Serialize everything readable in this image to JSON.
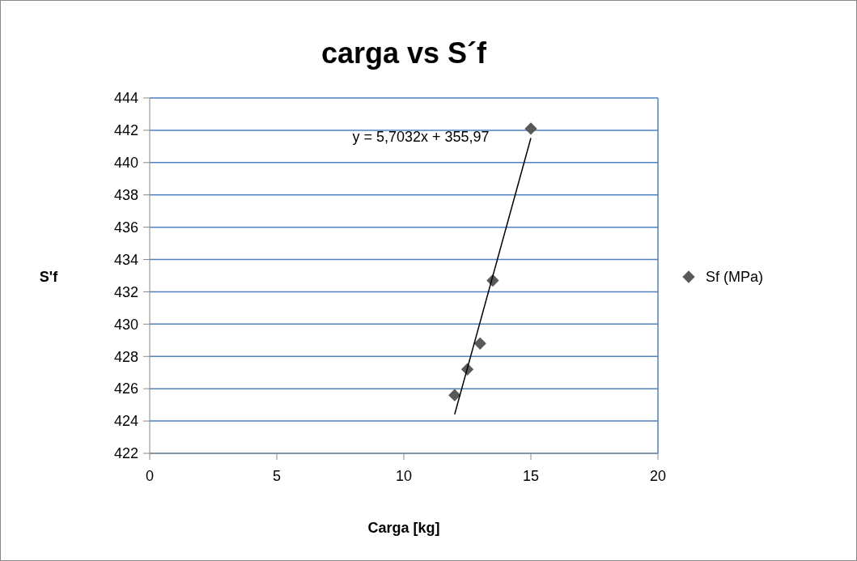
{
  "chart_data": {
    "type": "scatter",
    "title": "carga vs S´f",
    "xlabel": "Carga [kg]",
    "ylabel": "S'f",
    "xlim": [
      0,
      20
    ],
    "xticks": [
      0,
      5,
      10,
      15,
      20
    ],
    "ylim": [
      422,
      444
    ],
    "yticks": [
      422,
      424,
      426,
      428,
      430,
      432,
      434,
      436,
      438,
      440,
      442,
      444
    ],
    "grid": "y",
    "legend": "right",
    "annotations": [
      "y = 5,7032x + 355,97"
    ],
    "series": [
      {
        "name": "Sf  (MPa)",
        "color": "#595959",
        "marker": "diamond",
        "x": [
          12,
          12.5,
          13,
          13.5,
          15
        ],
        "values": [
          425.6,
          427.2,
          428.8,
          432.7,
          442.1
        ]
      },
      {
        "type": "line",
        "color": "#000000",
        "marker": "none",
        "x": [
          12,
          15
        ],
        "values": [
          424.41,
          441.52
        ]
      }
    ]
  }
}
